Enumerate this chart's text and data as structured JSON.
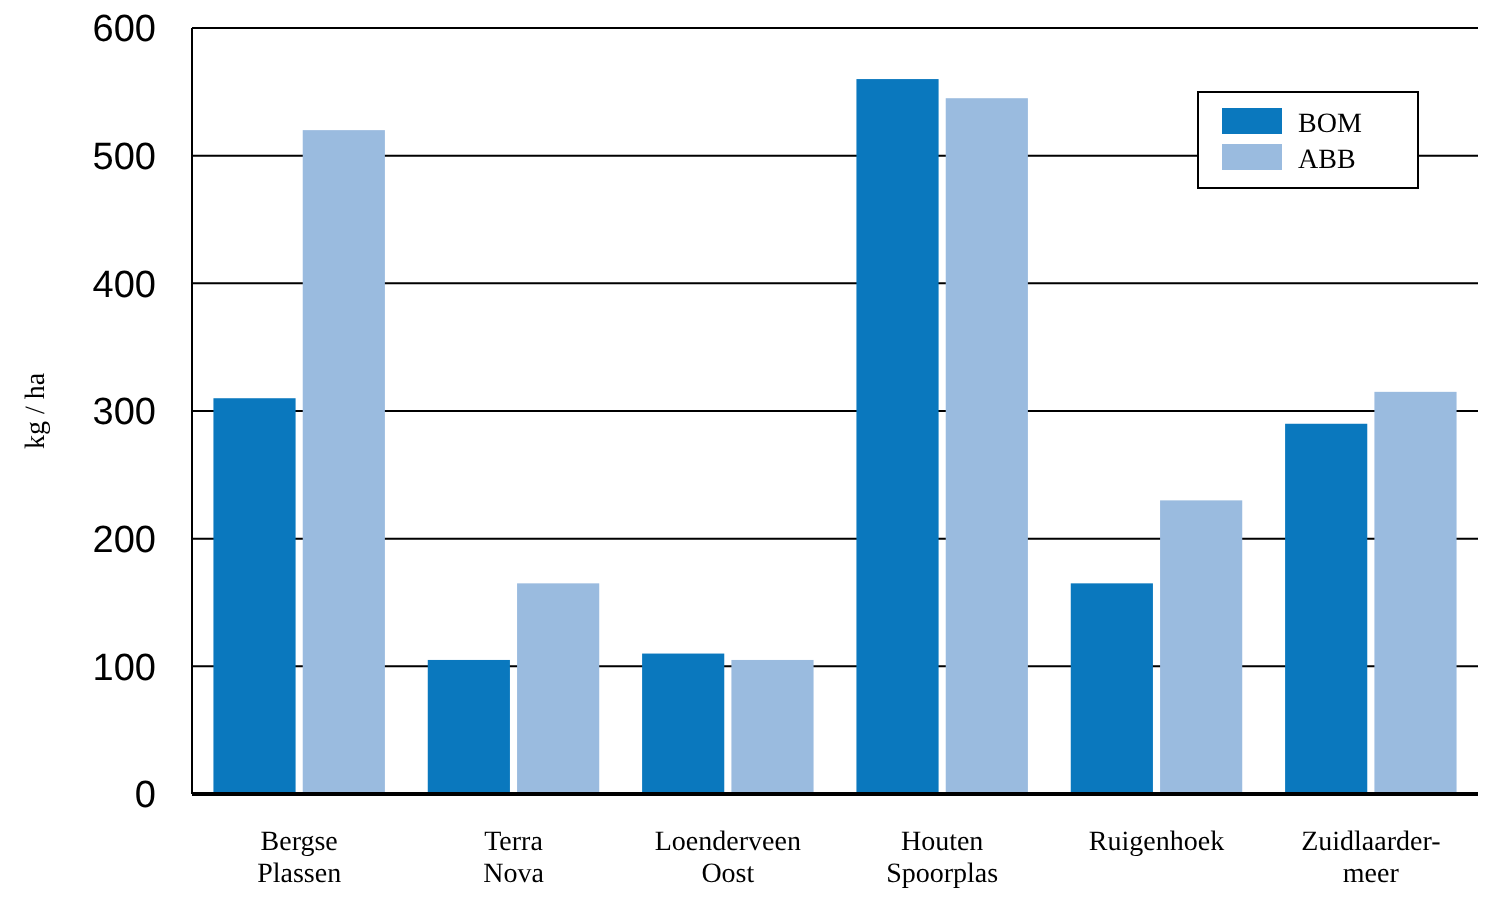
{
  "chart_data": {
    "type": "bar",
    "ylabel": "kg / ha",
    "categories": [
      "Bergse Plassen",
      "Terra Nova",
      "Loenderveen Oost",
      "Houten Spoorplas",
      "Ruigenhoek",
      "Zuidlaarder-meer"
    ],
    "series": [
      {
        "name": "BOM",
        "color": "#0a78be",
        "values": [
          310,
          105,
          110,
          560,
          165,
          290
        ]
      },
      {
        "name": "ABB",
        "color": "#9abbdf",
        "values": [
          520,
          165,
          105,
          545,
          230,
          315
        ]
      }
    ],
    "ylim": [
      0,
      600
    ],
    "yticks": [
      0,
      100,
      200,
      300,
      400,
      500,
      600
    ],
    "grid": "y",
    "legend": "top right"
  }
}
